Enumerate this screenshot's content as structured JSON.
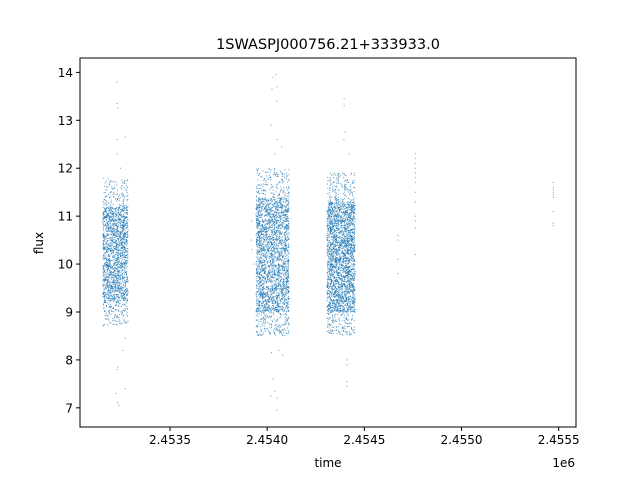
{
  "chart_data": {
    "type": "scatter",
    "title": "1SWASPJ000756.21+333933.0",
    "xlabel": "time",
    "ylabel": "flux",
    "x_offset_label": "1e6",
    "xlim": [
      2453037,
      2455589
    ],
    "ylim": [
      6.6,
      14.3
    ],
    "xticks": [
      2453500,
      2454000,
      2454500,
      2455000,
      2455500
    ],
    "xtick_labels": [
      "2.4535",
      "2.4540",
      "2.4545",
      "2.4550",
      "2.4555"
    ],
    "yticks": [
      7,
      8,
      9,
      10,
      11,
      12,
      13,
      14
    ],
    "ytick_labels": [
      "7",
      "8",
      "9",
      "10",
      "11",
      "12",
      "13",
      "14"
    ],
    "grid": false,
    "marker_color": "#1f77b4",
    "clusters": [
      {
        "x_range": [
          2453155,
          2453284
        ],
        "y_core": [
          9.2,
          11.2
        ],
        "count": 1800,
        "seed": 11
      },
      {
        "x_range": [
          2453943,
          2454113
        ],
        "y_core": [
          9.0,
          11.4
        ],
        "count": 2600,
        "seed": 23
      },
      {
        "x_range": [
          2454308,
          2454452
        ],
        "y_core": [
          9.0,
          11.3
        ],
        "count": 2600,
        "seed": 37
      }
    ],
    "points": [
      [
        2453227,
        13.8
      ],
      [
        2453227,
        13.35
      ],
      [
        2453232,
        13.25
      ],
      [
        2453227,
        12.6
      ],
      [
        2453227,
        12.3
      ],
      [
        2453270,
        12.65
      ],
      [
        2453245,
        12.0
      ],
      [
        2453227,
        7.8
      ],
      [
        2453232,
        7.85
      ],
      [
        2453222,
        7.3
      ],
      [
        2453232,
        7.1
      ],
      [
        2453237,
        7.05
      ],
      [
        2453270,
        7.4
      ],
      [
        2453258,
        8.2
      ],
      [
        2453270,
        8.45
      ],
      [
        2454030,
        13.9
      ],
      [
        2454046,
        13.95
      ],
      [
        2454025,
        13.65
      ],
      [
        2454051,
        13.7
      ],
      [
        2454050,
        13.4
      ],
      [
        2454020,
        12.9
      ],
      [
        2454050,
        12.6
      ],
      [
        2454075,
        12.45
      ],
      [
        2454040,
        12.3
      ],
      [
        2454030,
        7.6
      ],
      [
        2454020,
        7.25
      ],
      [
        2454040,
        7.35
      ],
      [
        2454050,
        7.2
      ],
      [
        2454050,
        6.95
      ],
      [
        2454022,
        8.15
      ],
      [
        2454060,
        8.2
      ],
      [
        2454080,
        8.1
      ],
      [
        2454100,
        11.6
      ],
      [
        2453920,
        10.9
      ],
      [
        2453918,
        10.5
      ],
      [
        2453930,
        10.0
      ],
      [
        2453921,
        10.3
      ],
      [
        2454396,
        13.45
      ],
      [
        2454396,
        13.3
      ],
      [
        2454402,
        12.75
      ],
      [
        2454395,
        12.6
      ],
      [
        2454420,
        12.3
      ],
      [
        2454411,
        7.55
      ],
      [
        2454411,
        7.45
      ],
      [
        2454411,
        8.0
      ],
      [
        2454411,
        7.9
      ],
      [
        2454425,
        8.7
      ],
      [
        2454673,
        10.6
      ],
      [
        2454673,
        10.5
      ],
      [
        2454673,
        10.1
      ],
      [
        2454673,
        9.8
      ],
      [
        2454762,
        12.3
      ],
      [
        2454762,
        12.2
      ],
      [
        2454762,
        12.1
      ],
      [
        2454762,
        12.0
      ],
      [
        2454762,
        11.9
      ],
      [
        2454762,
        11.8
      ],
      [
        2454762,
        11.7
      ],
      [
        2454762,
        11.5
      ],
      [
        2454762,
        11.3
      ],
      [
        2454762,
        11.0
      ],
      [
        2454762,
        10.9
      ],
      [
        2454762,
        10.75
      ],
      [
        2454762,
        10.2
      ],
      [
        2455472,
        11.7
      ],
      [
        2455472,
        11.6
      ],
      [
        2455472,
        11.55
      ],
      [
        2455472,
        11.5
      ],
      [
        2455472,
        11.45
      ],
      [
        2455472,
        11.4
      ],
      [
        2455472,
        11.1
      ],
      [
        2455472,
        10.85
      ],
      [
        2455472,
        10.8
      ]
    ]
  }
}
